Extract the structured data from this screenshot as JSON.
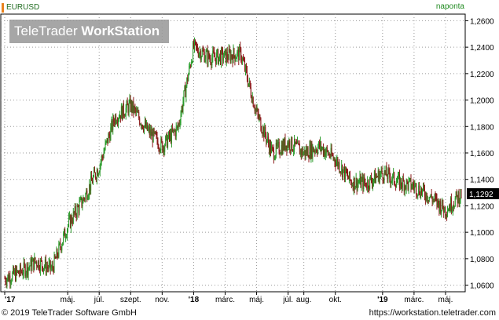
{
  "header": {
    "symbol": "EURUSD",
    "interval": "naponta",
    "watermark_light": "TeleTrader ",
    "watermark_bold": "WorkStation"
  },
  "footer": {
    "copyright": "© 2019 TeleTrader Software GmbH",
    "url": "https://workstation.teletrader.com"
  },
  "colors": {
    "up": "#2a9a2a",
    "down": "#8b1a1a",
    "grid": "#9a9a9a",
    "axis": "#000000",
    "marker": "#e8821e",
    "last_label_bg": "#000000"
  },
  "chart_data": {
    "type": "candlestick",
    "series": [
      {
        "name": "EURUSD"
      }
    ],
    "x": [
      "2017-01",
      "2017-02",
      "2017-03",
      "2017-04",
      "2017-05",
      "2017-06",
      "2017-07",
      "2017-08",
      "2017-09",
      "2017-10",
      "2017-11",
      "2017-12",
      "2018-01",
      "2018-02",
      "2018-03",
      "2018-04",
      "2018-05",
      "2018-06",
      "2018-07",
      "2018-08",
      "2018-09",
      "2018-10",
      "2018-11",
      "2018-12",
      "2019-01",
      "2019-02",
      "2019-03",
      "2019-04",
      "2019-05",
      "2019-06"
    ],
    "close": [
      1.065,
      1.07,
      1.078,
      1.072,
      1.105,
      1.125,
      1.15,
      1.187,
      1.196,
      1.178,
      1.165,
      1.179,
      1.24,
      1.232,
      1.233,
      1.235,
      1.19,
      1.16,
      1.168,
      1.16,
      1.165,
      1.155,
      1.138,
      1.137,
      1.145,
      1.138,
      1.135,
      1.127,
      1.117,
      1.1292
    ],
    "ylim": [
      1.055,
      1.265
    ],
    "yticks": [
      "1,0600",
      "1,0800",
      "1,1000",
      "1,1200",
      "1,1400",
      "1,1600",
      "1,1800",
      "1,2000",
      "1,2200",
      "1,2400",
      "1,2600"
    ],
    "ytick_values": [
      1.06,
      1.08,
      1.1,
      1.12,
      1.14,
      1.16,
      1.18,
      1.2,
      1.22,
      1.24,
      1.26
    ],
    "xticks": [
      {
        "label": "'17",
        "pos": 0.0,
        "bold": true
      },
      {
        "label": "máj.",
        "pos": 4.0
      },
      {
        "label": "júl.",
        "pos": 6.0
      },
      {
        "label": "szept.",
        "pos": 8.0
      },
      {
        "label": "nov.",
        "pos": 10.0
      },
      {
        "label": "'18",
        "pos": 12.0,
        "bold": true
      },
      {
        "label": "márc.",
        "pos": 14.0
      },
      {
        "label": "máj.",
        "pos": 16.0
      },
      {
        "label": "júl.",
        "pos": 18.0
      },
      {
        "label": "aug.",
        "pos": 19.0
      },
      {
        "label": "okt.",
        "pos": 21.0
      },
      {
        "label": "'19",
        "pos": 24.0,
        "bold": true
      },
      {
        "label": "márc.",
        "pos": 26.0
      },
      {
        "label": "máj.",
        "pos": 28.0
      }
    ],
    "last_value": "1,1292",
    "grid": true
  }
}
